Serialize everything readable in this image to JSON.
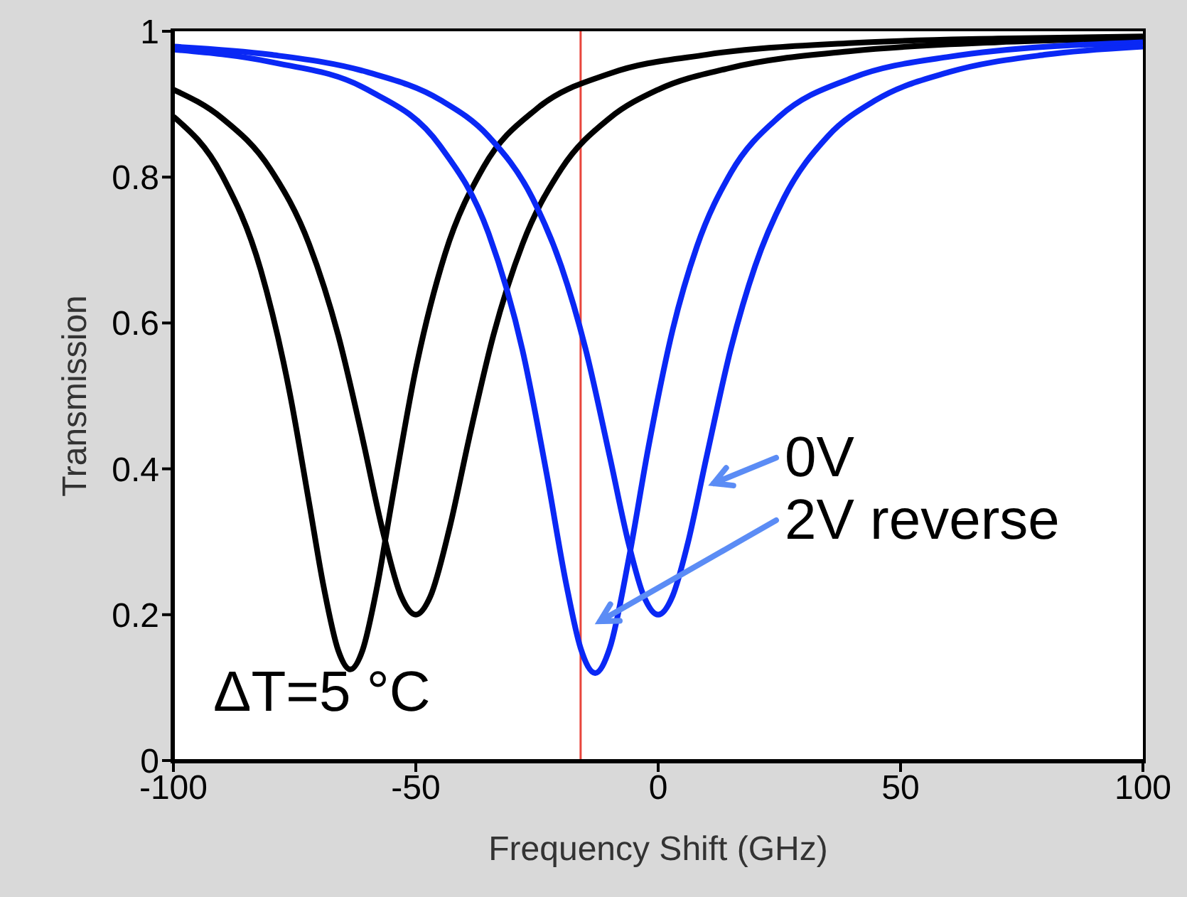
{
  "chart_data": {
    "type": "line",
    "xlabel": "Frequency Shift (GHz)",
    "ylabel": "Transmission",
    "xlim": [
      -100,
      100
    ],
    "xticks": [
      -100,
      -50,
      0,
      50,
      100
    ],
    "ylim": [
      0,
      1
    ],
    "yticks": [
      0,
      0.2,
      0.4,
      0.6,
      0.8,
      1
    ],
    "grid": false,
    "line_style": "solid",
    "series": [
      {
        "color": "#000000",
        "x": [
          -100,
          -90,
          -82,
          -76,
          -72,
          -69,
          -66,
          -63.5,
          -61,
          -58,
          -55,
          -50,
          -44,
          -36,
          -25,
          -10,
          10,
          40,
          70,
          100
        ],
        "values": [
          0.883,
          0.803,
          0.673,
          0.504,
          0.353,
          0.238,
          0.151,
          0.125,
          0.151,
          0.238,
          0.353,
          0.537,
          0.694,
          0.814,
          0.894,
          0.942,
          0.968,
          0.984,
          0.99,
          0.993
        ]
      },
      {
        "color": "#000000",
        "x": [
          -100,
          -90,
          -80,
          -72,
          -66,
          -61,
          -57,
          -53,
          -50,
          -47,
          -43,
          -39,
          -34,
          -28,
          -20,
          -10,
          0,
          15,
          40,
          70,
          100
        ],
        "values": [
          0.92,
          0.881,
          0.811,
          0.708,
          0.583,
          0.442,
          0.32,
          0.225,
          0.2,
          0.225,
          0.32,
          0.442,
          0.583,
          0.708,
          0.811,
          0.881,
          0.92,
          0.95,
          0.973,
          0.985,
          0.99
        ]
      },
      {
        "color": "#0a28f5",
        "x": [
          -100,
          -80,
          -60,
          -45,
          -35,
          -28,
          -23,
          -19,
          -16,
          -13,
          -10,
          -6,
          -2,
          3,
          8,
          15,
          25,
          40,
          60,
          100
        ],
        "values": [
          0.975,
          0.958,
          0.92,
          0.843,
          0.723,
          0.563,
          0.393,
          0.243,
          0.154,
          0.12,
          0.154,
          0.279,
          0.43,
          0.591,
          0.705,
          0.806,
          0.883,
          0.936,
          0.965,
          0.985
        ]
      },
      {
        "color": "#0a28f5",
        "x": [
          -100,
          -80,
          -60,
          -45,
          -35,
          -26,
          -20,
          -15,
          -10,
          -6,
          -3,
          0,
          3,
          6,
          10,
          15,
          20,
          26,
          35,
          45,
          60,
          80,
          100
        ],
        "values": [
          0.979,
          0.968,
          0.944,
          0.906,
          0.856,
          0.772,
          0.678,
          0.565,
          0.417,
          0.295,
          0.226,
          0.2,
          0.226,
          0.295,
          0.417,
          0.565,
          0.678,
          0.772,
          0.856,
          0.906,
          0.944,
          0.968,
          0.979
        ]
      }
    ],
    "ref_lines": [
      {
        "axis": "x",
        "value": -16,
        "color": "#e8453c"
      }
    ],
    "annotations": [
      "0V",
      "2V reverse",
      "ΔT=5 °C"
    ]
  }
}
